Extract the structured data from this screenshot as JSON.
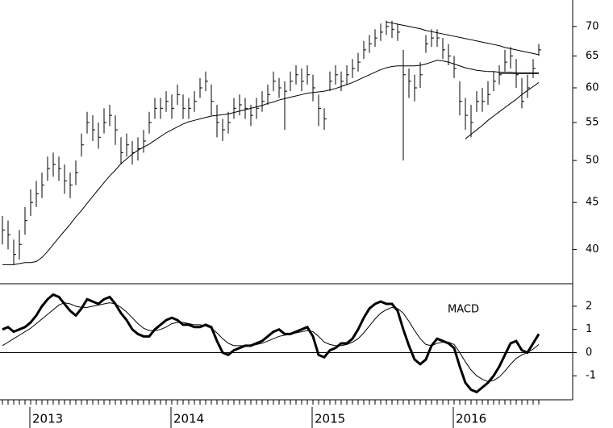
{
  "chart_data": [
    {
      "type": "ohlc",
      "log_scale": true,
      "ylim": [
        36.7,
        74.8
      ],
      "yticks": [
        40,
        45,
        50,
        55,
        60,
        65,
        70
      ],
      "color": "#000000",
      "high": [
        43.5,
        43,
        41,
        42,
        44.5,
        46.5,
        47.5,
        48.5,
        50.5,
        51,
        50.5,
        49.5,
        48.5,
        50,
        53.5,
        56.5,
        56,
        55,
        57,
        57.5,
        56,
        53,
        53.5,
        52.5,
        53,
        54,
        56.5,
        58.5,
        58.5,
        59.5,
        59,
        60.5,
        59,
        58.5,
        59.5,
        61.5,
        62.5,
        60.5,
        57.5,
        55.5,
        56.5,
        58.5,
        59,
        58.5,
        57.5,
        58.5,
        59.5,
        60.5,
        62.5,
        61.5,
        61,
        62.5,
        63.5,
        63,
        63.5,
        62,
        59,
        57,
        62.5,
        63.5,
        62.5,
        63.5,
        64.5,
        65.5,
        67.5,
        68.5,
        69.5,
        70.5,
        71,
        71,
        70.5,
        66,
        63,
        62,
        64,
        68.5,
        69.5,
        69.5,
        68,
        67,
        65,
        61,
        58.5,
        57.5,
        59.5,
        60,
        61,
        62.5,
        63.5,
        66,
        66.5,
        64.5,
        61.5,
        62,
        64.5,
        67
      ],
      "low": [
        40.5,
        40,
        38.5,
        39,
        41.5,
        43.5,
        44.5,
        45.5,
        47.5,
        48,
        47.5,
        46,
        45.5,
        47,
        50.5,
        53.5,
        52.5,
        51.5,
        53.5,
        54.5,
        52,
        49.5,
        50.5,
        49.5,
        50,
        51,
        53.5,
        55.5,
        55.5,
        56.5,
        55.5,
        57.5,
        55.5,
        55.5,
        56.5,
        58.5,
        59.5,
        56,
        53,
        52.5,
        53.5,
        55.5,
        56,
        55.5,
        54.5,
        55.5,
        56.5,
        57.5,
        59.5,
        58.5,
        54,
        59.5,
        60.5,
        59.5,
        60.5,
        58,
        54.5,
        54,
        59.5,
        60.5,
        59.5,
        60.5,
        61.5,
        62.5,
        64.5,
        65.5,
        66.5,
        67.5,
        68.5,
        68,
        67.5,
        50,
        58.5,
        58,
        60,
        65.5,
        66.5,
        66.5,
        64.5,
        63.5,
        61.5,
        56,
        54,
        53,
        56.5,
        56.5,
        57.5,
        59.5,
        60.5,
        62.5,
        63,
        60,
        57,
        58.5,
        61.5,
        65
      ],
      "close": [
        42,
        41.5,
        39.5,
        40.5,
        43,
        45,
        46,
        47,
        49,
        49.5,
        49,
        47.5,
        47,
        48.5,
        52,
        55,
        54,
        53,
        55,
        56,
        54,
        51,
        52,
        51,
        51.5,
        52.5,
        55,
        57,
        57,
        58,
        57,
        59,
        57,
        57,
        58,
        60,
        61,
        58,
        55,
        54,
        55,
        57,
        57.5,
        57,
        56,
        57,
        58,
        59,
        61,
        60,
        59.5,
        61,
        62,
        61,
        62,
        60,
        57,
        55.5,
        61,
        62,
        61,
        62,
        63,
        64,
        66,
        67,
        68,
        69,
        70,
        69.5,
        69,
        62,
        61,
        60,
        62,
        67,
        68,
        68,
        66,
        65,
        63,
        58,
        56,
        55,
        58,
        58,
        59,
        61,
        62,
        64,
        65,
        62,
        58,
        60,
        63,
        66
      ],
      "series": [
        {
          "color": "#000000",
          "values": [
            38.5,
            38.5,
            38.5,
            38.6,
            38.7,
            38.7,
            38.8,
            39.2,
            39.8,
            40.5,
            41.2,
            41.9,
            42.6,
            43.4,
            44.1,
            44.9,
            45.7,
            46.5,
            47.3,
            48.1,
            48.8,
            49.6,
            50.2,
            50.8,
            51.3,
            51.7,
            52.1,
            52.6,
            53.1,
            53.6,
            54.0,
            54.4,
            54.8,
            55.1,
            55.3,
            55.5,
            55.7,
            55.9,
            56.0,
            56.1,
            56.2,
            56.4,
            56.6,
            56.8,
            57.0,
            57.2,
            57.4,
            57.7,
            57.9,
            58.2,
            58.4,
            58.6,
            58.8,
            59.0,
            59.2,
            59.3,
            59.4,
            59.5,
            59.7,
            59.9,
            60.2,
            60.5,
            60.8,
            61.2,
            61.6,
            62.0,
            62.4,
            62.8,
            63.1,
            63.3,
            63.4,
            63.4,
            63.4,
            63.4,
            63.5,
            63.7,
            64.0,
            64.3,
            64.2,
            64.0,
            63.7,
            63.4,
            63.1,
            62.9,
            62.7,
            62.6,
            62.5,
            62.5,
            62.4,
            62.4,
            62.4,
            62.3,
            62.3,
            62.3,
            62.3,
            62.3
          ]
        }
      ],
      "trendlines": [
        {
          "values": [
            null,
            null,
            null,
            null,
            null,
            null,
            null,
            null,
            null,
            null,
            null,
            null,
            null,
            null,
            null,
            null,
            null,
            null,
            null,
            null,
            null,
            null,
            null,
            null,
            null,
            null,
            null,
            null,
            null,
            null,
            null,
            null,
            null,
            null,
            null,
            null,
            null,
            null,
            null,
            null,
            null,
            null,
            null,
            null,
            null,
            null,
            null,
            null,
            null,
            null,
            null,
            null,
            null,
            null,
            null,
            null,
            null,
            null,
            null,
            null,
            null,
            null,
            null,
            null,
            null,
            null,
            null,
            null,
            70.8,
            70.6,
            70.4,
            70.2,
            70.0,
            69.8,
            69.6,
            69.3,
            69.1,
            68.9,
            68.7,
            68.5,
            68.3,
            68.1,
            67.9,
            67.7,
            67.5,
            67.3,
            67.1,
            66.9,
            66.7,
            66.4,
            66.2,
            66.0,
            65.8,
            65.6,
            65.4,
            65.2
          ]
        },
        {
          "values": [
            null,
            null,
            null,
            null,
            null,
            null,
            null,
            null,
            null,
            null,
            null,
            null,
            null,
            null,
            null,
            null,
            null,
            null,
            null,
            null,
            null,
            null,
            null,
            null,
            null,
            null,
            null,
            null,
            null,
            null,
            null,
            null,
            null,
            null,
            null,
            null,
            null,
            null,
            null,
            null,
            null,
            null,
            null,
            null,
            null,
            null,
            null,
            null,
            null,
            null,
            null,
            null,
            null,
            null,
            null,
            null,
            null,
            null,
            null,
            null,
            null,
            null,
            null,
            null,
            null,
            null,
            null,
            null,
            null,
            null,
            null,
            null,
            null,
            null,
            null,
            null,
            null,
            null,
            null,
            null,
            null,
            null,
            52.8,
            53.4,
            54.0,
            54.6,
            55.3,
            55.9,
            56.5,
            57.1,
            57.7,
            58.3,
            59.0,
            59.6,
            60.2,
            60.8
          ]
        },
        {
          "values": [
            null,
            null,
            null,
            null,
            null,
            null,
            null,
            null,
            null,
            null,
            null,
            null,
            null,
            null,
            null,
            null,
            null,
            null,
            null,
            null,
            null,
            null,
            null,
            null,
            null,
            null,
            null,
            null,
            null,
            null,
            null,
            null,
            null,
            null,
            null,
            null,
            null,
            null,
            null,
            null,
            null,
            null,
            null,
            null,
            null,
            null,
            null,
            null,
            null,
            null,
            null,
            null,
            null,
            null,
            null,
            null,
            null,
            null,
            null,
            null,
            null,
            null,
            null,
            null,
            null,
            null,
            null,
            null,
            null,
            null,
            null,
            null,
            null,
            null,
            null,
            null,
            null,
            null,
            null,
            null,
            null,
            null,
            null,
            null,
            null,
            null,
            null,
            null,
            62.2,
            62.2,
            62.2,
            62.2,
            62.2,
            62.2,
            62.2,
            62.2
          ]
        }
      ]
    },
    {
      "type": "line",
      "ylim": [
        -2,
        2.97
      ],
      "yticks": [
        -1,
        0,
        1,
        2
      ],
      "categories": [
        null,
        null,
        null,
        null,
        null,
        "2013",
        null,
        null,
        null,
        null,
        null,
        null,
        null,
        null,
        null,
        null,
        null,
        null,
        null,
        null,
        null,
        null,
        null,
        null,
        null,
        null,
        null,
        null,
        null,
        null,
        "2014",
        null,
        null,
        null,
        null,
        null,
        null,
        null,
        null,
        null,
        null,
        null,
        null,
        null,
        null,
        null,
        null,
        null,
        null,
        null,
        null,
        null,
        null,
        null,
        null,
        "2015",
        null,
        null,
        null,
        null,
        null,
        null,
        null,
        null,
        null,
        null,
        null,
        null,
        null,
        null,
        null,
        null,
        null,
        null,
        null,
        null,
        null,
        null,
        null,
        null,
        "2016",
        null,
        null,
        null,
        null,
        null,
        null,
        null,
        null,
        null,
        null,
        null,
        null,
        null,
        null,
        null
      ],
      "series": [
        {
          "name": "MACD",
          "color": "#000000",
          "values": [
            1.0,
            1.1,
            0.9,
            1.0,
            1.1,
            1.3,
            1.6,
            2.0,
            2.3,
            2.5,
            2.4,
            2.1,
            1.8,
            1.6,
            1.9,
            2.3,
            2.2,
            2.1,
            2.3,
            2.4,
            2.1,
            1.7,
            1.4,
            1.0,
            0.8,
            0.7,
            0.7,
            1.0,
            1.2,
            1.4,
            1.5,
            1.4,
            1.2,
            1.2,
            1.1,
            1.1,
            1.2,
            1.1,
            0.5,
            0.0,
            -0.1,
            0.1,
            0.2,
            0.3,
            0.3,
            0.4,
            0.5,
            0.7,
            0.9,
            1.0,
            0.8,
            0.8,
            0.9,
            1.0,
            1.1,
            0.7,
            -0.1,
            -0.2,
            0.1,
            0.2,
            0.4,
            0.4,
            0.6,
            1.0,
            1.5,
            1.9,
            2.1,
            2.2,
            2.1,
            2.1,
            1.8,
            1.0,
            0.3,
            -0.3,
            -0.5,
            -0.3,
            0.3,
            0.6,
            0.5,
            0.4,
            0.2,
            -0.6,
            -1.3,
            -1.6,
            -1.7,
            -1.5,
            -1.3,
            -1.0,
            -0.6,
            -0.1,
            0.4,
            0.5,
            0.1,
            0.0,
            0.4,
            0.8
          ]
        },
        {
          "color": "#000000",
          "values": [
            0.3,
            0.45,
            0.6,
            0.75,
            0.9,
            1.05,
            1.25,
            1.45,
            1.65,
            1.85,
            2.05,
            2.15,
            2.1,
            2.0,
            1.95,
            1.95,
            2.0,
            2.05,
            2.1,
            2.15,
            2.1,
            1.95,
            1.75,
            1.5,
            1.25,
            1.05,
            0.95,
            0.95,
            1.0,
            1.1,
            1.25,
            1.3,
            1.3,
            1.25,
            1.2,
            1.2,
            1.15,
            1.05,
            0.85,
            0.6,
            0.4,
            0.3,
            0.3,
            0.3,
            0.3,
            0.35,
            0.4,
            0.5,
            0.6,
            0.7,
            0.75,
            0.8,
            0.85,
            0.9,
            0.95,
            0.9,
            0.7,
            0.45,
            0.35,
            0.3,
            0.3,
            0.35,
            0.45,
            0.6,
            0.85,
            1.15,
            1.45,
            1.7,
            1.85,
            1.95,
            1.9,
            1.7,
            1.35,
            0.95,
            0.6,
            0.35,
            0.3,
            0.4,
            0.45,
            0.45,
            0.35,
            0.0,
            -0.4,
            -0.75,
            -1.0,
            -1.15,
            -1.25,
            -1.2,
            -1.05,
            -0.8,
            -0.5,
            -0.25,
            -0.1,
            0.0,
            0.15,
            0.35
          ]
        }
      ]
    }
  ]
}
